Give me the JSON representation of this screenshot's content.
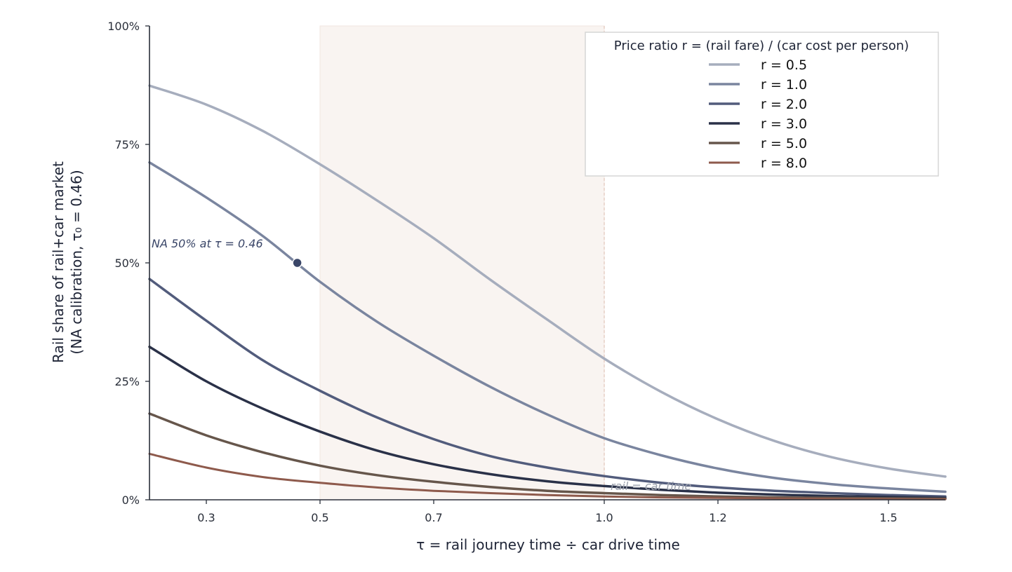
{
  "chart_data": {
    "type": "line",
    "title": "",
    "xlabel": "τ  =  rail journey time  ÷  car drive time",
    "ylabel_line1": "Rail share of rail+car market",
    "ylabel_line2": "(NA calibration, τ₀ = 0.46)",
    "xlim": [
      0.2,
      1.6
    ],
    "ylim": [
      0,
      1
    ],
    "x_ticks": [
      {
        "value": 0.3,
        "label": "0.3"
      },
      {
        "value": 0.5,
        "label": "0.5"
      },
      {
        "value": 0.7,
        "label": "0.7"
      },
      {
        "value": 1.0,
        "label": "1.0"
      },
      {
        "value": 1.2,
        "label": "1.2"
      },
      {
        "value": 1.5,
        "label": "1.5"
      }
    ],
    "y_ticks": [
      {
        "value": 0,
        "label": "0%"
      },
      {
        "value": 0.25,
        "label": "25%"
      },
      {
        "value": 0.5,
        "label": "50%"
      },
      {
        "value": 0.75,
        "label": "75%"
      },
      {
        "value": 1.0,
        "label": "100%"
      }
    ],
    "grid": false,
    "shaded_band": {
      "x_start": 0.5,
      "x_end": 1.0,
      "color": "#f9f4f1"
    },
    "reference_line": {
      "x": 1.0,
      "label": "rail = car time",
      "color": "#e3c8bd"
    },
    "highlight_point": {
      "x": 0.46,
      "y": 0.5,
      "label": "NA 50% at τ = 0.46",
      "color": "#3a4668"
    },
    "legend": {
      "title": "Price ratio  r = (rail fare) / (car cost per person)",
      "placement": "top-right"
    },
    "series": [
      {
        "name": "r = 0.5",
        "color": "#a6adbd",
        "width": 3.5,
        "x": [
          0.2,
          0.3,
          0.4,
          0.5,
          0.6,
          0.7,
          0.8,
          0.9,
          1.0,
          1.1,
          1.2,
          1.3,
          1.4,
          1.5,
          1.6
        ],
        "y": [
          0.874,
          0.834,
          0.778,
          0.708,
          0.632,
          0.552,
          0.464,
          0.38,
          0.298,
          0.228,
          0.17,
          0.124,
          0.09,
          0.066,
          0.049
        ]
      },
      {
        "name": "r = 1.0",
        "color": "#7a859f",
        "width": 3.5,
        "x": [
          0.2,
          0.3,
          0.4,
          0.5,
          0.6,
          0.7,
          0.8,
          0.9,
          1.0,
          1.1,
          1.2,
          1.3,
          1.4,
          1.5,
          1.6
        ],
        "y": [
          0.712,
          0.638,
          0.556,
          0.46,
          0.376,
          0.304,
          0.238,
          0.18,
          0.13,
          0.094,
          0.066,
          0.046,
          0.033,
          0.024,
          0.017
        ]
      },
      {
        "name": "r = 2.0",
        "color": "#525c7c",
        "width": 3.5,
        "x": [
          0.2,
          0.3,
          0.4,
          0.5,
          0.6,
          0.7,
          0.8,
          0.9,
          1.0,
          1.1,
          1.2,
          1.3,
          1.4,
          1.5,
          1.6
        ],
        "y": [
          0.466,
          0.378,
          0.294,
          0.23,
          0.174,
          0.128,
          0.092,
          0.068,
          0.05,
          0.036,
          0.026,
          0.019,
          0.014,
          0.01,
          0.007
        ]
      },
      {
        "name": "r = 3.0",
        "color": "#2a3148",
        "width": 3.5,
        "x": [
          0.2,
          0.3,
          0.4,
          0.5,
          0.6,
          0.7,
          0.8,
          0.9,
          1.0,
          1.1,
          1.2,
          1.3,
          1.4,
          1.5,
          1.6
        ],
        "y": [
          0.323,
          0.25,
          0.192,
          0.144,
          0.104,
          0.075,
          0.054,
          0.039,
          0.029,
          0.021,
          0.015,
          0.011,
          0.008,
          0.006,
          0.004
        ]
      },
      {
        "name": "r = 5.0",
        "color": "#66564b",
        "width": 3.5,
        "x": [
          0.2,
          0.3,
          0.4,
          0.5,
          0.6,
          0.7,
          0.8,
          0.9,
          1.0,
          1.1,
          1.2,
          1.3,
          1.4,
          1.5,
          1.6
        ],
        "y": [
          0.182,
          0.136,
          0.1,
          0.072,
          0.052,
          0.038,
          0.027,
          0.019,
          0.014,
          0.01,
          0.007,
          0.005,
          0.004,
          0.003,
          0.002
        ]
      },
      {
        "name": "r = 8.0",
        "color": "#8e5a4c",
        "width": 3,
        "x": [
          0.2,
          0.3,
          0.4,
          0.5,
          0.6,
          0.7,
          0.8,
          0.9,
          1.0,
          1.1,
          1.2,
          1.3,
          1.4,
          1.5,
          1.6
        ],
        "y": [
          0.097,
          0.068,
          0.048,
          0.036,
          0.026,
          0.019,
          0.014,
          0.01,
          0.007,
          0.005,
          0.004,
          0.003,
          0.002,
          0.0015,
          0.001
        ]
      }
    ]
  }
}
